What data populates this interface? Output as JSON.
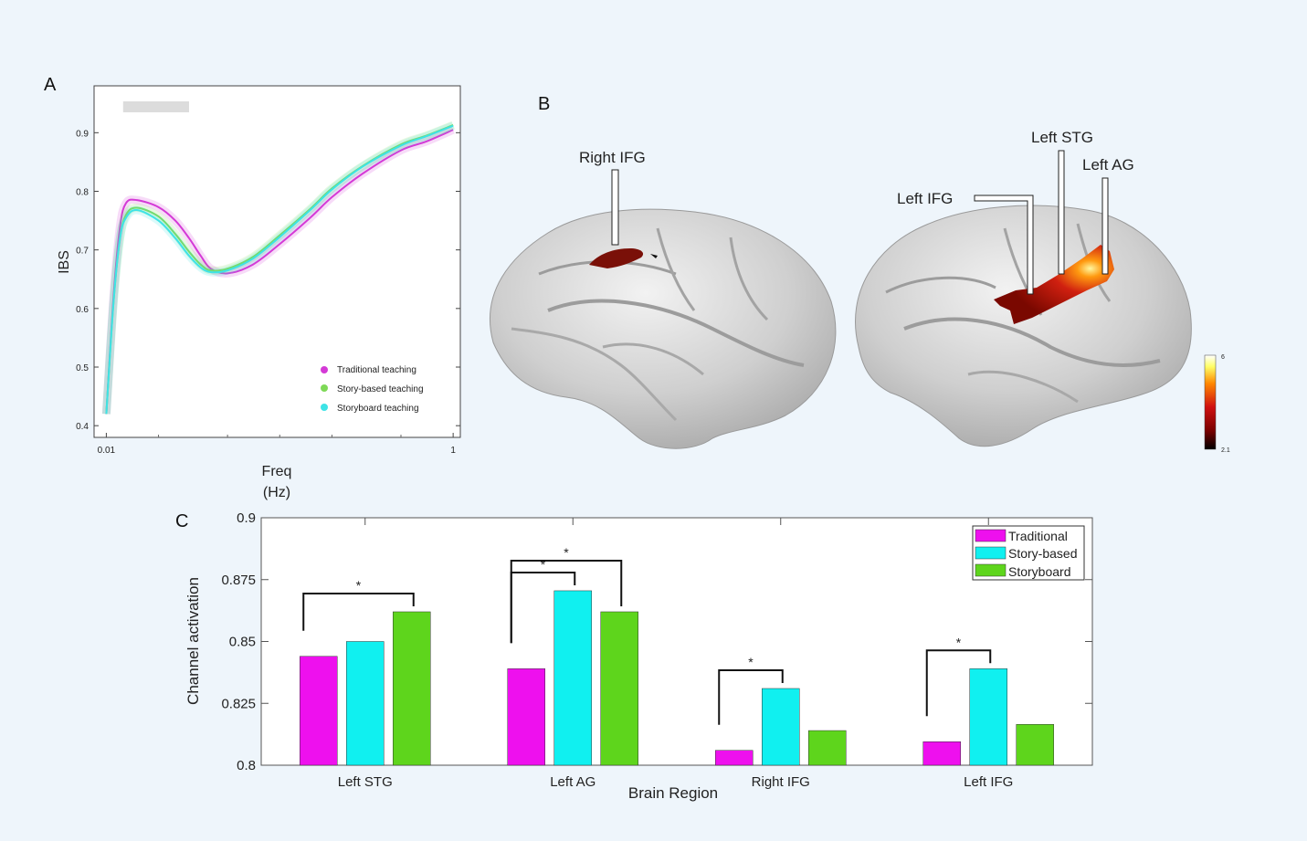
{
  "panels": {
    "a": "A",
    "b": "B",
    "c": "C"
  },
  "chart_data": [
    {
      "type": "line",
      "ylabel": "IBS",
      "xlabel": "Freq\n(Hz)",
      "xlabel_lines": [
        "Freq",
        "(Hz)"
      ],
      "xscale": "log",
      "xlim": [
        0.0085,
        1.1
      ],
      "ylim": [
        0.38,
        0.98
      ],
      "x_ticks": [
        0.01,
        1
      ],
      "x_tick_labels": [
        "0.01",
        "1"
      ],
      "y_ticks": [
        0.4,
        0.5,
        0.6,
        0.7,
        0.8,
        0.9
      ],
      "y_tick_labels": [
        "0.4",
        "0.5",
        "0.6",
        "0.7",
        "0.8",
        "0.9"
      ],
      "significance_band": {
        "x_range": [
          0.0125,
          0.03
        ]
      },
      "legend_position": "bottom-right",
      "series": [
        {
          "name": "Traditional teaching",
          "color": "#d43ad6",
          "x": [
            0.01,
            0.011,
            0.012,
            0.013,
            0.015,
            0.02,
            0.025,
            0.03,
            0.035,
            0.04,
            0.05,
            0.07,
            0.1,
            0.15,
            0.2,
            0.3,
            0.5,
            0.7,
            1
          ],
          "y": [
            0.42,
            0.62,
            0.74,
            0.78,
            0.785,
            0.773,
            0.75,
            0.72,
            0.69,
            0.668,
            0.66,
            0.675,
            0.71,
            0.755,
            0.79,
            0.83,
            0.87,
            0.885,
            0.905
          ]
        },
        {
          "name": "Story-based teaching",
          "color": "#7ed957",
          "x": [
            0.01,
            0.011,
            0.012,
            0.013,
            0.015,
            0.02,
            0.025,
            0.03,
            0.035,
            0.04,
            0.05,
            0.07,
            0.1,
            0.15,
            0.2,
            0.3,
            0.5,
            0.7,
            1
          ],
          "y": [
            0.42,
            0.61,
            0.72,
            0.76,
            0.772,
            0.757,
            0.727,
            0.697,
            0.675,
            0.665,
            0.668,
            0.688,
            0.725,
            0.77,
            0.805,
            0.843,
            0.88,
            0.895,
            0.913
          ]
        },
        {
          "name": "Storyboard teaching",
          "color": "#3ee3e6",
          "x": [
            0.01,
            0.011,
            0.012,
            0.013,
            0.015,
            0.02,
            0.025,
            0.03,
            0.035,
            0.04,
            0.05,
            0.07,
            0.1,
            0.15,
            0.2,
            0.3,
            0.5,
            0.7,
            1
          ],
          "y": [
            0.42,
            0.61,
            0.72,
            0.755,
            0.768,
            0.75,
            0.72,
            0.69,
            0.67,
            0.662,
            0.665,
            0.685,
            0.722,
            0.768,
            0.803,
            0.842,
            0.878,
            0.894,
            0.912
          ]
        }
      ]
    },
    {
      "type": "bar",
      "xlabel": "Brain Region",
      "ylabel": "Channel activation",
      "ylim": [
        0.8,
        0.9
      ],
      "y_ticks": [
        0.8,
        0.825,
        0.85,
        0.875,
        0.9
      ],
      "y_tick_labels": [
        "0.8",
        "0.825",
        "0.85",
        "0.875",
        "0.9"
      ],
      "categories": [
        "Left STG",
        "Left AG",
        "Right IFG",
        "Left IFG"
      ],
      "legend_position": "top-right",
      "series": [
        {
          "name": "Traditional",
          "color": "#ee10ee",
          "values": [
            0.844,
            0.839,
            0.806,
            0.8095
          ]
        },
        {
          "name": "Story-based",
          "color": "#10f0f0",
          "values": [
            0.85,
            0.8705,
            0.831,
            0.839
          ]
        },
        {
          "name": "Storyboard",
          "color": "#5ed51c",
          "values": [
            0.862,
            0.862,
            0.814,
            0.8165
          ]
        }
      ],
      "significance": [
        {
          "category": 0,
          "from": 0,
          "to": 2,
          "label": "*"
        },
        {
          "category": 1,
          "from": 0,
          "to": 1,
          "label": "*"
        },
        {
          "category": 1,
          "from": 0,
          "to": 2,
          "label": "*"
        },
        {
          "category": 2,
          "from": 0,
          "to": 1,
          "label": "*"
        },
        {
          "category": 3,
          "from": 0,
          "to": 1,
          "label": "*"
        }
      ]
    }
  ],
  "brain": {
    "labels": {
      "right_ifg": "Right IFG",
      "left_stg": "Left STG",
      "left_ag": "Left AG",
      "left_ifg": "Left IFG"
    },
    "colorbar": {
      "max": "6",
      "min": "2.1",
      "colors": [
        "#000000",
        "#7a0000",
        "#d01010",
        "#ff8800",
        "#ffff66",
        "#ffffff"
      ]
    }
  }
}
